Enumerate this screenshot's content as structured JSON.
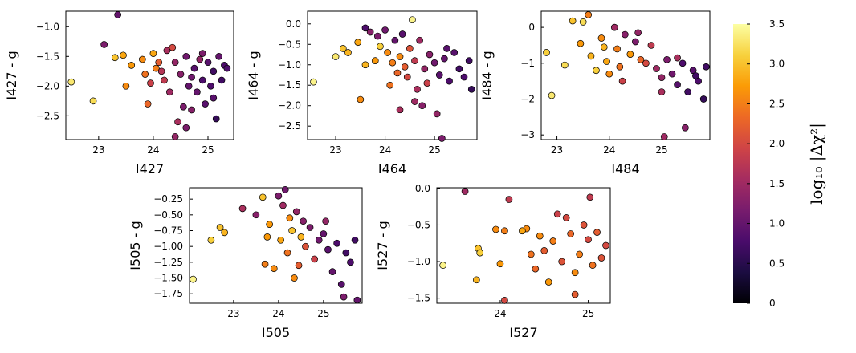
{
  "chart_data": [
    {
      "type": "scatter",
      "xlabel": "I427",
      "ylabel": "I427 - g",
      "xlim": [
        22.4,
        25.47
      ],
      "ylim": [
        -2.9,
        -0.74
      ],
      "xticks": [
        23,
        24,
        25
      ],
      "yticks": [
        {
          "value": -1.0,
          "label": "−1.0"
        },
        {
          "value": -1.5,
          "label": "−1.5"
        },
        {
          "value": -2.0,
          "label": "−2.0"
        },
        {
          "value": -2.5,
          "label": "−2.5"
        }
      ],
      "x": [
        22.5,
        22.9,
        23.1,
        23.35,
        23.3,
        23.45,
        23.5,
        23.6,
        23.8,
        23.85,
        23.9,
        24.0,
        24.05,
        24.1,
        24.2,
        24.25,
        24.3,
        24.4,
        24.45,
        24.5,
        24.55,
        24.6,
        24.65,
        24.7,
        24.75,
        24.8,
        24.85,
        24.9,
        24.95,
        25.0,
        25.05,
        25.1,
        25.15,
        25.2,
        25.25,
        25.3,
        24.4,
        24.6,
        23.95,
        24.35,
        24.15,
        24.7,
        24.9,
        25.1,
        25.35
      ],
      "y": [
        -1.93,
        -2.25,
        -1.3,
        -0.8,
        -1.52,
        -1.48,
        -2.0,
        -1.65,
        -1.55,
        -1.8,
        -2.3,
        -1.45,
        -1.7,
        -1.6,
        -1.9,
        -1.4,
        -2.1,
        -1.6,
        -2.6,
        -1.8,
        -2.35,
        -1.5,
        -2.0,
        -2.4,
        -1.7,
        -2.1,
        -1.55,
        -1.9,
        -2.3,
        -1.6,
        -2.0,
        -1.75,
        -2.55,
        -1.5,
        -1.9,
        -1.65,
        -2.85,
        -2.7,
        -1.95,
        -1.35,
        -1.75,
        -1.85,
        -1.45,
        -2.2,
        -1.7
      ],
      "c": [
        3.3,
        3.2,
        1.2,
        1.0,
        3.0,
        2.8,
        2.6,
        2.7,
        2.6,
        2.4,
        2.3,
        2.8,
        2.5,
        2.2,
        1.8,
        1.6,
        1.5,
        1.4,
        1.6,
        1.3,
        1.2,
        1.1,
        1.0,
        1.3,
        0.9,
        1.0,
        1.4,
        0.8,
        0.9,
        0.9,
        0.8,
        0.7,
        0.6,
        1.0,
        0.7,
        0.8,
        1.4,
        1.2,
        1.9,
        2.0,
        1.7,
        1.1,
        1.2,
        0.9,
        0.8
      ]
    },
    {
      "type": "scatter",
      "xlabel": "I464",
      "ylabel": "I464 - g",
      "xlim": [
        22.43,
        25.86
      ],
      "ylim": [
        -2.83,
        0.31
      ],
      "xticks": [
        23,
        24,
        25
      ],
      "yticks": [
        {
          "value": 0.0,
          "label": "0.0"
        },
        {
          "value": -0.5,
          "label": "−0.5"
        },
        {
          "value": -1.0,
          "label": "−1.0"
        },
        {
          "value": -1.5,
          "label": "−1.5"
        },
        {
          "value": -2.0,
          "label": "−2.0"
        },
        {
          "value": -2.5,
          "label": "−2.5"
        }
      ],
      "x": [
        22.55,
        23.0,
        23.15,
        23.25,
        23.45,
        23.5,
        23.6,
        23.7,
        23.8,
        23.85,
        23.9,
        24.0,
        24.05,
        24.1,
        24.15,
        24.2,
        24.25,
        24.3,
        24.35,
        24.4,
        24.45,
        24.5,
        24.55,
        24.6,
        24.65,
        24.7,
        24.8,
        24.9,
        25.0,
        25.05,
        25.1,
        25.2,
        25.3,
        25.4,
        25.5,
        25.6,
        25.7,
        25.75,
        24.6,
        24.75,
        25.15,
        24.3,
        23.6,
        24.85,
        25.25
      ],
      "y": [
        -1.42,
        -0.8,
        -0.6,
        -0.7,
        -0.45,
        -1.85,
        -1.0,
        -0.2,
        -0.9,
        -0.3,
        -0.55,
        -0.15,
        -0.7,
        -1.5,
        -0.95,
        -0.4,
        -1.2,
        -0.8,
        -0.25,
        -1.05,
        -1.3,
        -0.6,
        0.1,
        -0.9,
        -1.6,
        -0.4,
        -1.1,
        -0.75,
        -0.95,
        -2.2,
        -1.25,
        -0.85,
        -1.4,
        -0.7,
        -1.1,
        -1.3,
        -0.9,
        -1.6,
        -1.9,
        -2.0,
        -2.8,
        -2.1,
        -0.1,
        -1.45,
        -0.6
      ],
      "c": [
        3.4,
        3.3,
        3.0,
        2.9,
        2.8,
        2.6,
        2.9,
        1.3,
        2.7,
        1.2,
        3.1,
        1.1,
        2.6,
        2.4,
        2.5,
        1.0,
        2.3,
        2.6,
        0.9,
        2.2,
        2.0,
        2.1,
        3.4,
        1.8,
        1.6,
        1.5,
        1.4,
        1.3,
        1.1,
        1.4,
        0.9,
        1.0,
        0.8,
        0.9,
        0.7,
        0.8,
        0.7,
        0.6,
        1.5,
        1.3,
        1.2,
        1.6,
        0.8,
        1.9,
        0.9
      ]
    },
    {
      "type": "scatter",
      "xlabel": "I484",
      "ylabel": "I484 - g",
      "xlim": [
        22.7,
        25.92
      ],
      "ylim": [
        -3.13,
        0.45
      ],
      "xticks": [
        23,
        24,
        25
      ],
      "yticks": [
        {
          "value": 0,
          "label": "0"
        },
        {
          "value": -1,
          "label": "−1"
        },
        {
          "value": -2,
          "label": "−2"
        },
        {
          "value": -3,
          "label": "−3"
        }
      ],
      "x": [
        22.8,
        22.9,
        23.15,
        23.3,
        23.45,
        23.5,
        23.6,
        23.65,
        23.75,
        23.85,
        23.95,
        24.0,
        24.1,
        24.15,
        24.2,
        24.3,
        24.4,
        24.5,
        24.6,
        24.7,
        24.8,
        24.9,
        25.0,
        25.05,
        25.1,
        25.2,
        25.3,
        25.4,
        25.5,
        25.6,
        25.7,
        25.8,
        25.85,
        25.45,
        25.3,
        24.25,
        23.9,
        24.55,
        25.0,
        25.65
      ],
      "y": [
        -0.7,
        -1.9,
        -1.05,
        0.18,
        -0.45,
        0.15,
        0.35,
        -0.8,
        -1.2,
        -0.3,
        -0.95,
        -1.3,
        0.0,
        -0.6,
        -1.1,
        -0.2,
        -0.75,
        -0.4,
        -0.9,
        -1.0,
        -0.5,
        -1.15,
        -1.4,
        -3.05,
        -0.9,
        -1.3,
        -1.6,
        -1.0,
        -1.8,
        -1.2,
        -1.5,
        -2.0,
        -1.1,
        -2.8,
        -0.85,
        -1.5,
        -0.55,
        -0.15,
        -1.8,
        -1.35
      ],
      "c": [
        3.1,
        3.3,
        3.2,
        3.0,
        2.7,
        3.2,
        2.5,
        2.9,
        3.1,
        2.6,
        2.8,
        2.6,
        1.5,
        2.5,
        2.4,
        1.3,
        2.7,
        1.2,
        2.3,
        2.0,
        1.8,
        1.5,
        1.4,
        1.5,
        1.2,
        1.1,
        0.9,
        0.8,
        0.7,
        0.9,
        0.8,
        0.6,
        0.7,
        1.3,
        1.6,
        1.9,
        2.9,
        1.4,
        1.6,
        0.7
      ]
    },
    {
      "type": "scatter",
      "xlabel": "I505",
      "ylabel": "I505 - g",
      "xlim": [
        22.02,
        25.86
      ],
      "ylim": [
        -1.9,
        -0.07
      ],
      "xticks": [
        23,
        24,
        25
      ],
      "yticks": [
        {
          "value": -0.25,
          "label": "−0.25"
        },
        {
          "value": -0.5,
          "label": "−0.50"
        },
        {
          "value": -0.75,
          "label": "−0.75"
        },
        {
          "value": -1.0,
          "label": "−1.00"
        },
        {
          "value": -1.25,
          "label": "−1.25"
        },
        {
          "value": -1.5,
          "label": "−1.50"
        },
        {
          "value": -1.75,
          "label": "−1.75"
        }
      ],
      "x": [
        22.1,
        22.5,
        22.7,
        22.8,
        23.2,
        23.5,
        23.65,
        23.7,
        23.8,
        23.9,
        24.0,
        24.05,
        24.1,
        24.2,
        24.25,
        24.3,
        24.4,
        24.45,
        24.5,
        24.55,
        24.6,
        24.7,
        24.8,
        24.9,
        25.0,
        25.1,
        25.2,
        25.3,
        25.4,
        25.5,
        25.6,
        25.7,
        25.75,
        24.35,
        25.45,
        23.75,
        24.15,
        25.05
      ],
      "y": [
        -1.52,
        -0.9,
        -0.7,
        -0.78,
        -0.4,
        -0.5,
        -0.22,
        -1.28,
        -0.65,
        -1.35,
        -0.2,
        -0.9,
        -0.35,
        -1.1,
        -0.55,
        -0.75,
        -0.45,
        -1.3,
        -0.85,
        -0.6,
        -1.0,
        -0.7,
        -1.2,
        -0.9,
        -0.8,
        -1.05,
        -1.4,
        -0.95,
        -1.6,
        -1.1,
        -1.25,
        -0.9,
        -1.85,
        -1.5,
        -1.8,
        -0.85,
        -0.1,
        -0.6
      ],
      "c": [
        3.4,
        3.1,
        3.0,
        2.9,
        1.6,
        1.3,
        3.0,
        2.5,
        2.7,
        2.6,
        1.2,
        2.8,
        1.5,
        2.4,
        2.6,
        3.0,
        1.4,
        2.2,
        2.9,
        1.3,
        2.1,
        1.2,
        1.9,
        1.1,
        1.0,
        0.9,
        1.0,
        0.8,
        0.9,
        0.7,
        0.8,
        0.7,
        1.0,
        2.6,
        1.2,
        2.7,
        1.1,
        1.4
      ]
    },
    {
      "type": "scatter",
      "xlabel": "I527",
      "ylabel": "I527 - g",
      "xlim": [
        23.28,
        25.25
      ],
      "ylim": [
        -1.57,
        0.01
      ],
      "xticks": [
        24,
        25
      ],
      "yticks": [
        {
          "value": 0.0,
          "label": "0.0"
        },
        {
          "value": -0.5,
          "label": "−0.5"
        },
        {
          "value": -1.0,
          "label": "−1.0"
        },
        {
          "value": -1.5,
          "label": "−1.5"
        }
      ],
      "x": [
        23.35,
        23.6,
        23.75,
        23.77,
        23.73,
        23.95,
        24.05,
        24.0,
        24.05,
        24.1,
        24.3,
        24.35,
        24.4,
        24.45,
        24.5,
        24.6,
        24.65,
        24.7,
        24.75,
        24.8,
        24.85,
        24.9,
        24.95,
        25.0,
        25.05,
        25.1,
        25.15,
        25.2,
        25.02,
        24.85,
        24.55,
        24.25
      ],
      "y": [
        -1.05,
        -0.04,
        -0.82,
        -0.88,
        -1.25,
        -0.56,
        -0.58,
        -1.03,
        -1.53,
        -0.15,
        -0.55,
        -0.9,
        -1.1,
        -0.65,
        -0.85,
        -0.72,
        -0.35,
        -1.0,
        -0.4,
        -0.62,
        -1.45,
        -0.9,
        -0.5,
        -0.7,
        -1.05,
        -0.6,
        -0.95,
        -0.78,
        -0.12,
        -1.15,
        -1.28,
        -0.58
      ],
      "c": [
        3.4,
        1.5,
        3.0,
        3.1,
        2.9,
        2.6,
        2.5,
        2.7,
        2.0,
        1.8,
        2.6,
        2.4,
        2.3,
        2.6,
        2.2,
        2.5,
        1.9,
        2.1,
        2.0,
        2.3,
        2.2,
        2.5,
        2.1,
        2.0,
        2.4,
        2.2,
        2.1,
        2.0,
        1.8,
        2.6,
        2.7,
        2.8
      ]
    },
    {
      "type": "colorbar",
      "label": "log₁₀ |Δχ²|",
      "clim": [
        0,
        3.5
      ],
      "ticks": [
        0,
        0.5,
        {
          "value": 1,
          "label": "1.0"
        },
        1.5,
        {
          "value": 2,
          "label": "2.0"
        },
        2.5,
        {
          "value": 3,
          "label": "3.0"
        },
        3.5
      ],
      "colormap": [
        "#000004",
        "#1b0c41",
        "#4a0c6b",
        "#781c6d",
        "#a52c60",
        "#cf4446",
        "#ed6925",
        "#fb9b06",
        "#f7d13d",
        "#fcffa4"
      ]
    }
  ]
}
